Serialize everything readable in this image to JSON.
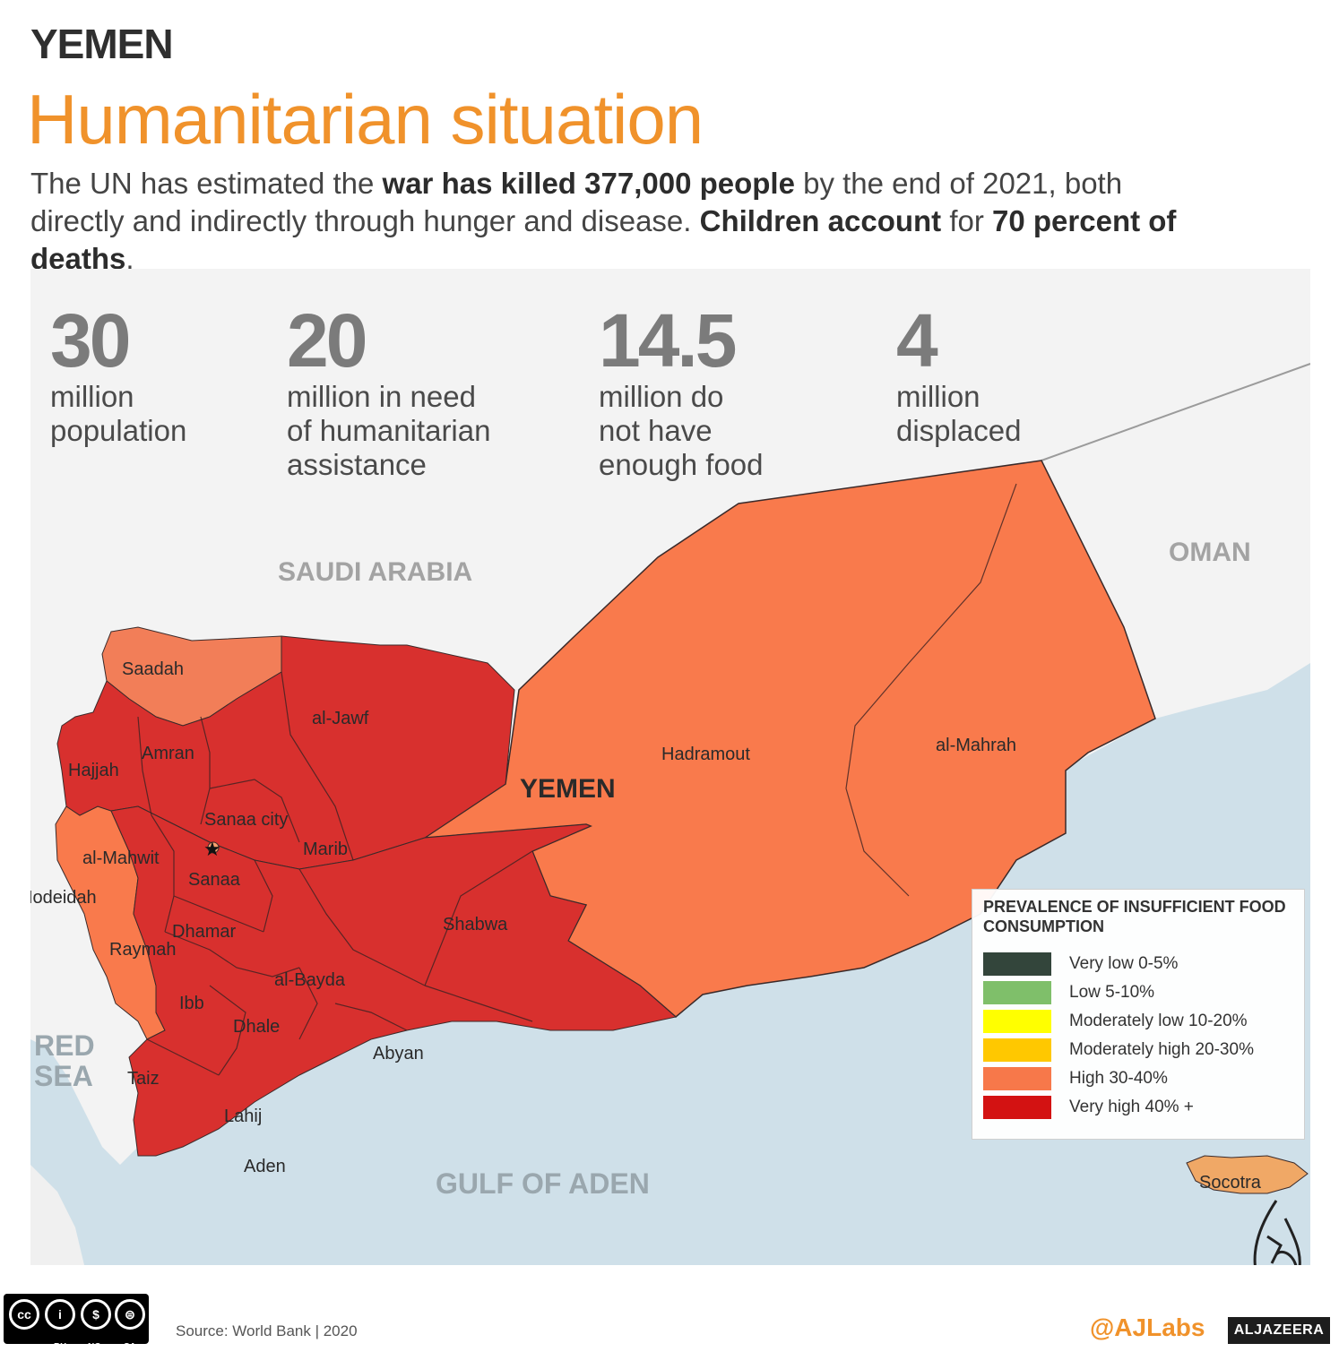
{
  "header": {
    "kicker": "YEMEN",
    "title": "Humanitarian situation",
    "intro_parts": [
      {
        "text": "The UN has estimated the ",
        "bold": false
      },
      {
        "text": "war has killed 377,000 people",
        "bold": true
      },
      {
        "text": " by the end of 2021, both directly and indirectly through hunger and disease. ",
        "bold": false
      },
      {
        "text": "Children account",
        "bold": true
      },
      {
        "text": " for ",
        "bold": false
      },
      {
        "text": "70 percent of deaths",
        "bold": true
      },
      {
        "text": ".",
        "bold": false
      }
    ]
  },
  "stats": [
    {
      "value": "30",
      "label": "million\npopulation"
    },
    {
      "value": "20",
      "label": "million in need\nof humanitarian\nassistance"
    },
    {
      "value": "14.5",
      "label": "million do\nnot have\nenough food"
    },
    {
      "value": "4",
      "label": "million\ndisplaced"
    }
  ],
  "map": {
    "country_label": "YEMEN",
    "neighbors": {
      "saudi": "SAUDI ARABIA",
      "oman": "OMAN",
      "red_sea_1": "RED",
      "red_sea_2": "SEA",
      "gulf": "GULF OF ADEN"
    },
    "regions": [
      {
        "name": "Saadah",
        "category": "High 30-40%"
      },
      {
        "name": "al-Jawf",
        "category": "Very high 40% +"
      },
      {
        "name": "Amran",
        "category": "Very high 40% +"
      },
      {
        "name": "Hajjah",
        "category": "Very high 40% +"
      },
      {
        "name": "Sanaa city",
        "category": "High 30-40%"
      },
      {
        "name": "al-Mahwit",
        "category": "Very high 40% +"
      },
      {
        "name": "Marib",
        "category": "Very high 40% +"
      },
      {
        "name": "Sanaa",
        "category": "Very high 40% +"
      },
      {
        "name": "Hodeidah",
        "category": "High 30-40%"
      },
      {
        "name": "Dhamar",
        "category": "Very high 40% +"
      },
      {
        "name": "Raymah",
        "category": "Very high 40% +"
      },
      {
        "name": "Shabwa",
        "category": "Very high 40% +"
      },
      {
        "name": "al-Bayda",
        "category": "Very high 40% +"
      },
      {
        "name": "Ibb",
        "category": "Very high 40% +"
      },
      {
        "name": "Dhale",
        "category": "Very high 40% +"
      },
      {
        "name": "Abyan",
        "category": "Very high 40% +"
      },
      {
        "name": "Taiz",
        "category": "Very high 40% +"
      },
      {
        "name": "Lahij",
        "category": "Very high 40% +"
      },
      {
        "name": "Aden",
        "category": "Very high 40% +"
      },
      {
        "name": "Hadramout",
        "category": "High 30-40%"
      },
      {
        "name": "al-Mahrah",
        "category": "High 30-40%"
      },
      {
        "name": "Socotra",
        "category": "Moderately high 20-30%"
      }
    ]
  },
  "legend": {
    "title": "PREVALENCE OF INSUFFICIENT FOOD CONSUMPTION",
    "items": [
      {
        "label": "Very low 0-5%",
        "color": "#33453b"
      },
      {
        "label": "Low 5-10%",
        "color": "#7fbf6a"
      },
      {
        "label": "Moderately low 10-20%",
        "color": "#ffff00"
      },
      {
        "label": "Moderately high 20-30%",
        "color": "#ffc800"
      },
      {
        "label": "High 30-40%",
        "color": "#f7784a"
      },
      {
        "label": "Very high 40% +",
        "color": "#d31212"
      }
    ]
  },
  "footer": {
    "source": "Source: World Bank | 2020",
    "handle": "@AJLabs",
    "brand": "ALJAZEERA",
    "license_icons": [
      "cc",
      "i",
      "$",
      "⊜"
    ],
    "license_labels": [
      "BY",
      "NC",
      "SA"
    ]
  },
  "colors": {
    "title": "#f0922b",
    "very_high": "#d8302e",
    "high": "#f97a4c",
    "sea": "#cfe1ea",
    "land": "#f3f3f3"
  }
}
